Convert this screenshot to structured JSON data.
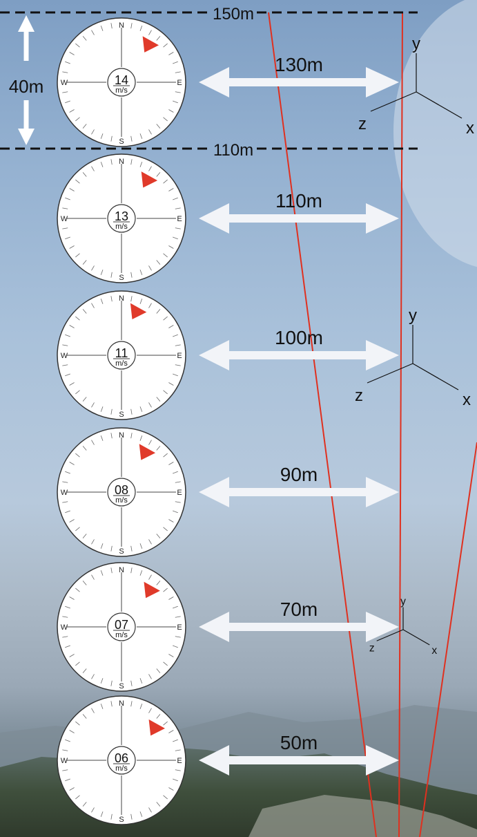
{
  "levels": {
    "top_line": "150m",
    "mid_line": "110m",
    "band_height": "40m"
  },
  "compass_letters": {
    "n": "N",
    "s": "S",
    "e": "E",
    "w": "W"
  },
  "speed_unit": "m/s",
  "rows": [
    {
      "speed": "14",
      "distance": "130m",
      "bearing_deg": 35
    },
    {
      "speed": "13",
      "distance": "110m",
      "bearing_deg": 33
    },
    {
      "speed": "11",
      "distance": "100m",
      "bearing_deg": 18
    },
    {
      "speed": "08",
      "distance": "90m",
      "bearing_deg": 30
    },
    {
      "speed": "07",
      "distance": "70m",
      "bearing_deg": 37
    },
    {
      "speed": "06",
      "distance": "50m",
      "bearing_deg": 45
    }
  ],
  "axes_labels": {
    "x": "x",
    "y": "y",
    "z": "z"
  },
  "colors": {
    "marker": "#e03a2a",
    "guide_line": "#e0301f",
    "arrow": "#f2f4f8",
    "dash": "#111111"
  }
}
